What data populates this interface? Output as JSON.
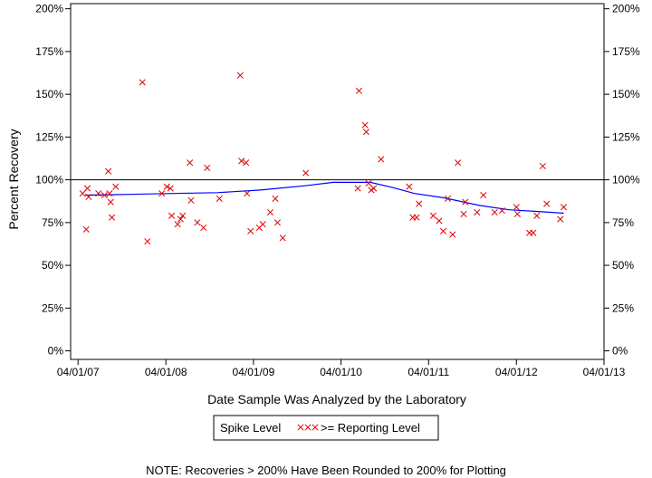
{
  "chart_data": {
    "type": "scatter",
    "xlabel": "Date Sample Was Analyzed by the Laboratory",
    "ylabel": "Percent Recovery",
    "xlim": [
      "2007-03-01",
      "2013-04-01"
    ],
    "ylim": [
      -5,
      203
    ],
    "x_ticks": [
      "2007-04-01",
      "2008-04-01",
      "2009-04-01",
      "2010-04-01",
      "2011-04-01",
      "2012-04-01",
      "2013-04-01"
    ],
    "x_tick_labels": [
      "04/01/07",
      "04/01/08",
      "04/01/09",
      "04/01/10",
      "04/01/11",
      "04/01/12",
      "04/01/13"
    ],
    "y_ticks": [
      0,
      25,
      50,
      75,
      100,
      125,
      150,
      175,
      200
    ],
    "y_tick_labels": [
      "0%",
      "25%",
      "50%",
      "75%",
      "100%",
      "125%",
      "150%",
      "175%",
      "200%"
    ],
    "reference_line": 100,
    "grid": false,
    "legend": {
      "position": "bottom",
      "items": [
        {
          "label": "Spike Level",
          "color": "#000000"
        },
        {
          "label": ">= Reporting Level",
          "color": "#e00000",
          "marker": "XXX"
        }
      ]
    },
    "note": "NOTE: Recoveries > 200% Have Been Rounded to 200% for Plotting",
    "series": [
      {
        "name": ">= Reporting Level",
        "type": "scatter",
        "color": "#e00000",
        "points": [
          {
            "x": "2007-04-20",
            "y": 92
          },
          {
            "x": "2007-05-05",
            "y": 71
          },
          {
            "x": "2007-05-10",
            "y": 95
          },
          {
            "x": "2007-05-15",
            "y": 90
          },
          {
            "x": "2007-06-25",
            "y": 92
          },
          {
            "x": "2007-07-20",
            "y": 91
          },
          {
            "x": "2007-08-05",
            "y": 105
          },
          {
            "x": "2007-08-10",
            "y": 92
          },
          {
            "x": "2007-08-15",
            "y": 87
          },
          {
            "x": "2007-08-20",
            "y": 78
          },
          {
            "x": "2007-09-05",
            "y": 96
          },
          {
            "x": "2007-12-25",
            "y": 157
          },
          {
            "x": "2008-01-15",
            "y": 64
          },
          {
            "x": "2008-03-15",
            "y": 92
          },
          {
            "x": "2008-04-05",
            "y": 96
          },
          {
            "x": "2008-04-20",
            "y": 95
          },
          {
            "x": "2008-04-25",
            "y": 79
          },
          {
            "x": "2008-05-20",
            "y": 74
          },
          {
            "x": "2008-06-01",
            "y": 77
          },
          {
            "x": "2008-06-10",
            "y": 79
          },
          {
            "x": "2008-07-10",
            "y": 110
          },
          {
            "x": "2008-07-15",
            "y": 88
          },
          {
            "x": "2008-08-10",
            "y": 75
          },
          {
            "x": "2008-09-05",
            "y": 72
          },
          {
            "x": "2008-09-20",
            "y": 107
          },
          {
            "x": "2008-11-10",
            "y": 89
          },
          {
            "x": "2009-02-05",
            "y": 161
          },
          {
            "x": "2009-02-10",
            "y": 111
          },
          {
            "x": "2009-03-01",
            "y": 110
          },
          {
            "x": "2009-03-05",
            "y": 92
          },
          {
            "x": "2009-03-20",
            "y": 70
          },
          {
            "x": "2009-04-25",
            "y": 72
          },
          {
            "x": "2009-05-10",
            "y": 74
          },
          {
            "x": "2009-06-10",
            "y": 81
          },
          {
            "x": "2009-07-01",
            "y": 89
          },
          {
            "x": "2009-07-10",
            "y": 75
          },
          {
            "x": "2009-08-01",
            "y": 66
          },
          {
            "x": "2009-11-05",
            "y": 104
          },
          {
            "x": "2010-06-15",
            "y": 152
          },
          {
            "x": "2010-06-10",
            "y": 95
          },
          {
            "x": "2010-07-10",
            "y": 132
          },
          {
            "x": "2010-07-15",
            "y": 128
          },
          {
            "x": "2010-07-25",
            "y": 98
          },
          {
            "x": "2010-08-05",
            "y": 94
          },
          {
            "x": "2010-08-15",
            "y": 95
          },
          {
            "x": "2010-09-15",
            "y": 112
          },
          {
            "x": "2011-01-10",
            "y": 96
          },
          {
            "x": "2011-01-25",
            "y": 78
          },
          {
            "x": "2011-02-10",
            "y": 78
          },
          {
            "x": "2011-02-20",
            "y": 86
          },
          {
            "x": "2011-04-20",
            "y": 79
          },
          {
            "x": "2011-05-15",
            "y": 76
          },
          {
            "x": "2011-06-01",
            "y": 70
          },
          {
            "x": "2011-06-20",
            "y": 89
          },
          {
            "x": "2011-07-10",
            "y": 68
          },
          {
            "x": "2011-08-01",
            "y": 110
          },
          {
            "x": "2011-08-25",
            "y": 80
          },
          {
            "x": "2011-09-01",
            "y": 87
          },
          {
            "x": "2011-10-20",
            "y": 81
          },
          {
            "x": "2011-11-15",
            "y": 91
          },
          {
            "x": "2012-01-01",
            "y": 81
          },
          {
            "x": "2012-02-01",
            "y": 82
          },
          {
            "x": "2012-04-01",
            "y": 84
          },
          {
            "x": "2012-04-05",
            "y": 80
          },
          {
            "x": "2012-05-25",
            "y": 69
          },
          {
            "x": "2012-06-10",
            "y": 69
          },
          {
            "x": "2012-06-25",
            "y": 79
          },
          {
            "x": "2012-07-20",
            "y": 108
          },
          {
            "x": "2012-08-05",
            "y": 86
          },
          {
            "x": "2012-10-01",
            "y": 77
          },
          {
            "x": "2012-10-15",
            "y": 84
          }
        ]
      },
      {
        "name": "Spike Level",
        "type": "line",
        "color": "#0000ff",
        "points": [
          {
            "x": "2007-05-01",
            "y": 91
          },
          {
            "x": "2007-11-01",
            "y": 91.5
          },
          {
            "x": "2008-05-01",
            "y": 92
          },
          {
            "x": "2008-11-01",
            "y": 92.5
          },
          {
            "x": "2009-05-01",
            "y": 94
          },
          {
            "x": "2009-11-01",
            "y": 96.5
          },
          {
            "x": "2010-03-01",
            "y": 98.5
          },
          {
            "x": "2010-08-01",
            "y": 98.5
          },
          {
            "x": "2010-11-01",
            "y": 95.5
          },
          {
            "x": "2011-02-01",
            "y": 92
          },
          {
            "x": "2011-06-01",
            "y": 89.5
          },
          {
            "x": "2011-11-01",
            "y": 85
          },
          {
            "x": "2012-03-01",
            "y": 82.5
          },
          {
            "x": "2012-07-01",
            "y": 81.5
          },
          {
            "x": "2012-10-15",
            "y": 80.5
          }
        ]
      }
    ]
  }
}
